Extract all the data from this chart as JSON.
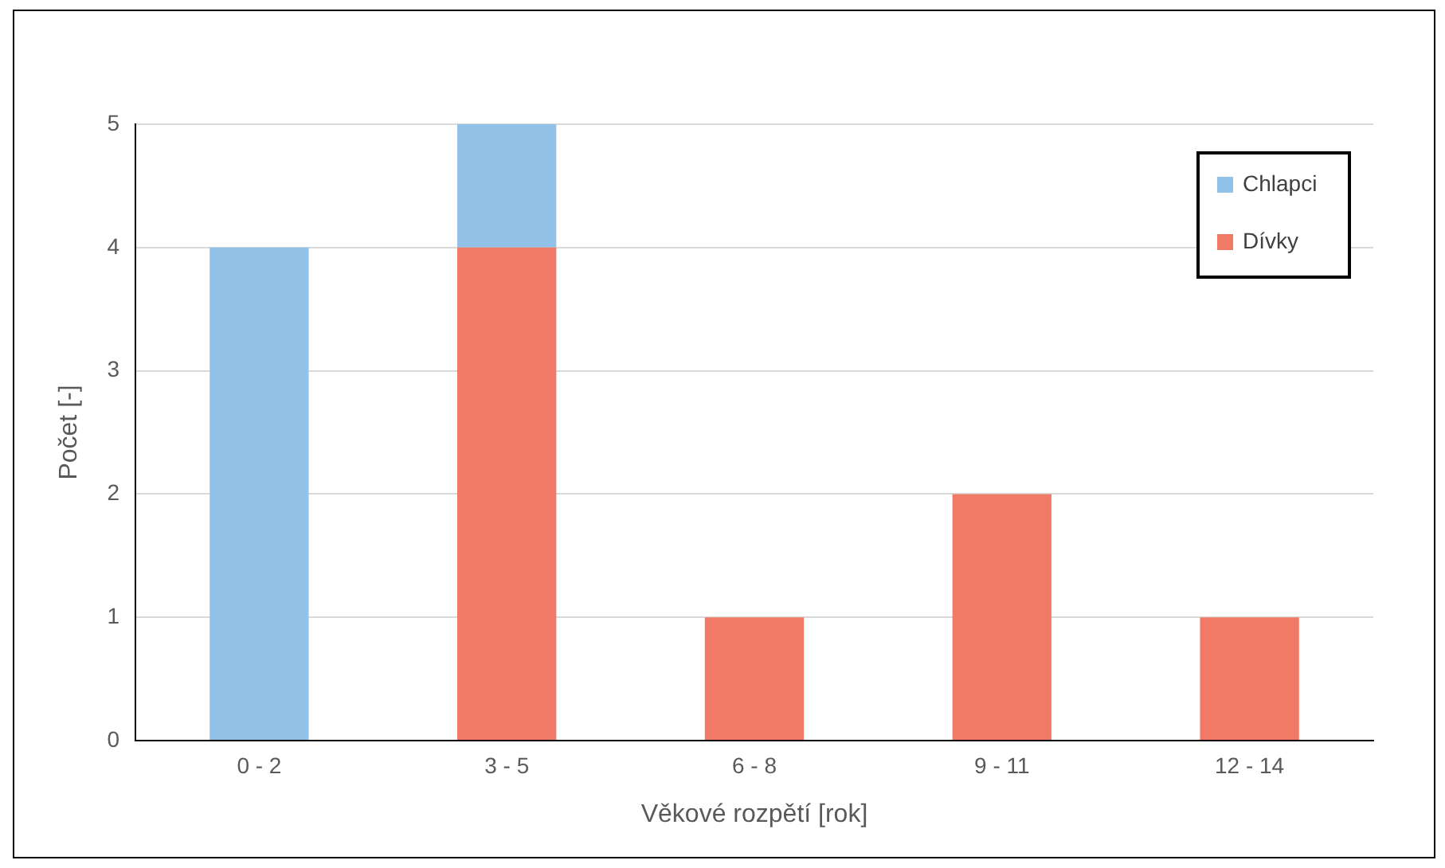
{
  "chart_data": {
    "type": "bar",
    "stacked": true,
    "xlabel": "Věkové rozpětí [rok]",
    "ylabel": "Počet [-]",
    "categories": [
      "0 - 2",
      "3 - 5",
      "6 - 8",
      "9 - 11",
      "12 - 14"
    ],
    "series": [
      {
        "name": "Dívky",
        "color": "#f07a66",
        "values": [
          0,
          4,
          1,
          2,
          1
        ]
      },
      {
        "name": "Chlapci",
        "color": "#93c2e8",
        "values": [
          4,
          1,
          0,
          0,
          0
        ]
      }
    ],
    "ylim": [
      0,
      5
    ],
    "yticks": [
      0,
      1,
      2,
      3,
      4,
      5
    ],
    "grid": "y",
    "legend": "top right"
  }
}
